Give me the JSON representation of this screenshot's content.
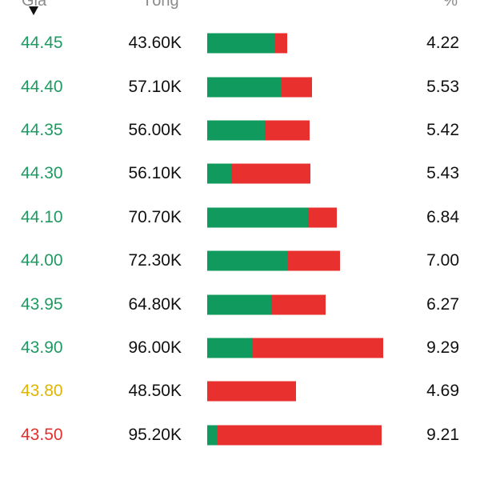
{
  "header": {
    "price_label": "Giá",
    "total_label": "Tổng",
    "percent_label": "%",
    "sort_icon": "sort-down-icon"
  },
  "colors": {
    "up": "#1f9a62",
    "reference": "#e0b400",
    "down": "#e2302e",
    "bar_buy": "#119a5e",
    "bar_sell": "#e8302e"
  },
  "rows": [
    {
      "price": "44.45",
      "total": "43.60K",
      "percent": "4.22",
      "price_color": "#1f9a62",
      "buy_share": 0.85,
      "sell_share": 0.15
    },
    {
      "price": "44.40",
      "total": "57.10K",
      "percent": "5.53",
      "price_color": "#1f9a62",
      "buy_share": 0.71,
      "sell_share": 0.29
    },
    {
      "price": "44.35",
      "total": "56.00K",
      "percent": "5.42",
      "price_color": "#1f9a62",
      "buy_share": 0.56,
      "sell_share": 0.44
    },
    {
      "price": "44.30",
      "total": "56.10K",
      "percent": "5.43",
      "price_color": "#1f9a62",
      "buy_share": 0.23,
      "sell_share": 0.77
    },
    {
      "price": "44.10",
      "total": "70.70K",
      "percent": "6.84",
      "price_color": "#1f9a62",
      "buy_share": 0.78,
      "sell_share": 0.22
    },
    {
      "price": "44.00",
      "total": "72.30K",
      "percent": "7.00",
      "price_color": "#1f9a62",
      "buy_share": 0.61,
      "sell_share": 0.39
    },
    {
      "price": "43.95",
      "total": "64.80K",
      "percent": "6.27",
      "price_color": "#1f9a62",
      "buy_share": 0.54,
      "sell_share": 0.46
    },
    {
      "price": "43.90",
      "total": "96.00K",
      "percent": "9.29",
      "price_color": "#1f9a62",
      "buy_share": 0.26,
      "sell_share": 0.74
    },
    {
      "price": "43.80",
      "total": "48.50K",
      "percent": "4.69",
      "price_color": "#e0b400",
      "buy_share": 0.0,
      "sell_share": 1.0
    },
    {
      "price": "43.50",
      "total": "95.20K",
      "percent": "9.21",
      "price_color": "#e2302e",
      "buy_share": 0.06,
      "sell_share": 0.94
    }
  ]
}
